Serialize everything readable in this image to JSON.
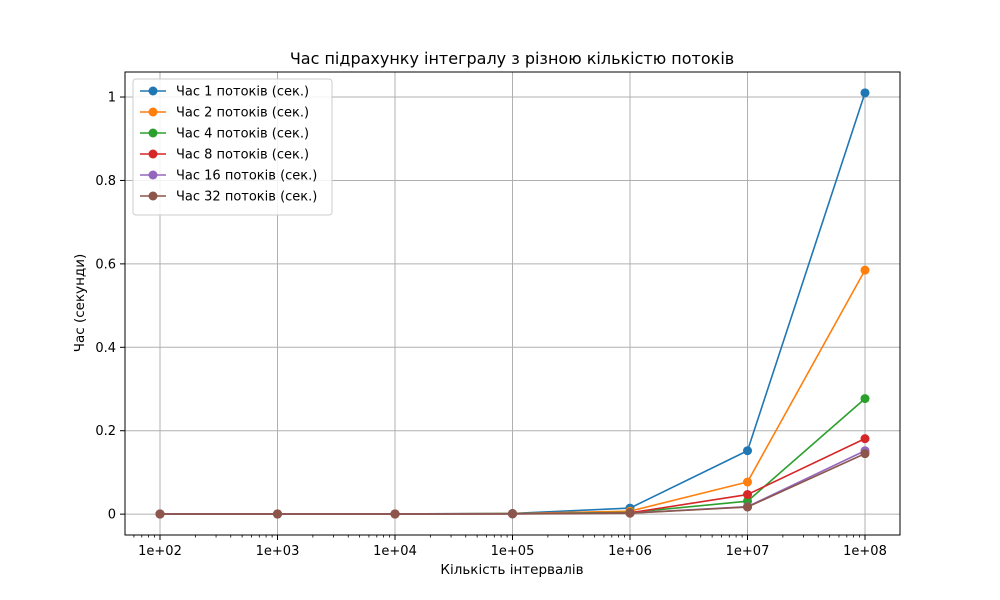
{
  "chart_data": {
    "type": "line",
    "title": "Час підрахунку інтегралу з різною кількістю потоків",
    "xlabel": "Кількість інтервалів",
    "ylabel": "Час (секунди)",
    "x_scale": "log",
    "x": [
      100,
      1000,
      10000,
      100000,
      1000000,
      10000000,
      100000000
    ],
    "x_tick_labels": [
      "1e+02",
      "1e+03",
      "1e+04",
      "1e+05",
      "1e+06",
      "1e+07",
      "1e+08"
    ],
    "y_ticks": [
      0,
      0.2,
      0.4,
      0.6,
      0.8,
      1
    ],
    "y_tick_labels": [
      "0",
      "0.2",
      "0.4",
      "0.6",
      "0.8",
      "1"
    ],
    "ylim": [
      -0.05,
      1.06
    ],
    "grid": true,
    "legend_position": "top-left",
    "series": [
      {
        "name": "Час 1 потоків (сек.)",
        "color": "#1f77b4",
        "values": [
          0.0005,
          0.0006,
          0.0006,
          0.0017,
          0.0145,
          0.152,
          1.01
        ]
      },
      {
        "name": "Час 2 потоків (сек.)",
        "color": "#ff7f0e",
        "values": [
          0.0004,
          0.0005,
          0.0005,
          0.0013,
          0.0072,
          0.077,
          0.585
        ]
      },
      {
        "name": "Час 4 потоків (сек.)",
        "color": "#2ca02c",
        "values": [
          0.0003,
          0.0004,
          0.0004,
          0.001,
          0.004,
          0.031,
          0.277
        ]
      },
      {
        "name": "Час 8 потоків (сек.)",
        "color": "#d62728",
        "values": [
          0.0003,
          0.0004,
          0.0004,
          0.0008,
          0.003,
          0.047,
          0.181
        ]
      },
      {
        "name": "Час 16 потоків (сек.)",
        "color": "#9467bd",
        "values": [
          0.0003,
          0.0003,
          0.0004,
          0.0007,
          0.0025,
          0.018,
          0.152
        ]
      },
      {
        "name": "Час 32 потоків (сек.)",
        "color": "#8c564b",
        "values": [
          0.0003,
          0.0003,
          0.0003,
          0.0006,
          0.0022,
          0.017,
          0.145
        ]
      }
    ]
  }
}
